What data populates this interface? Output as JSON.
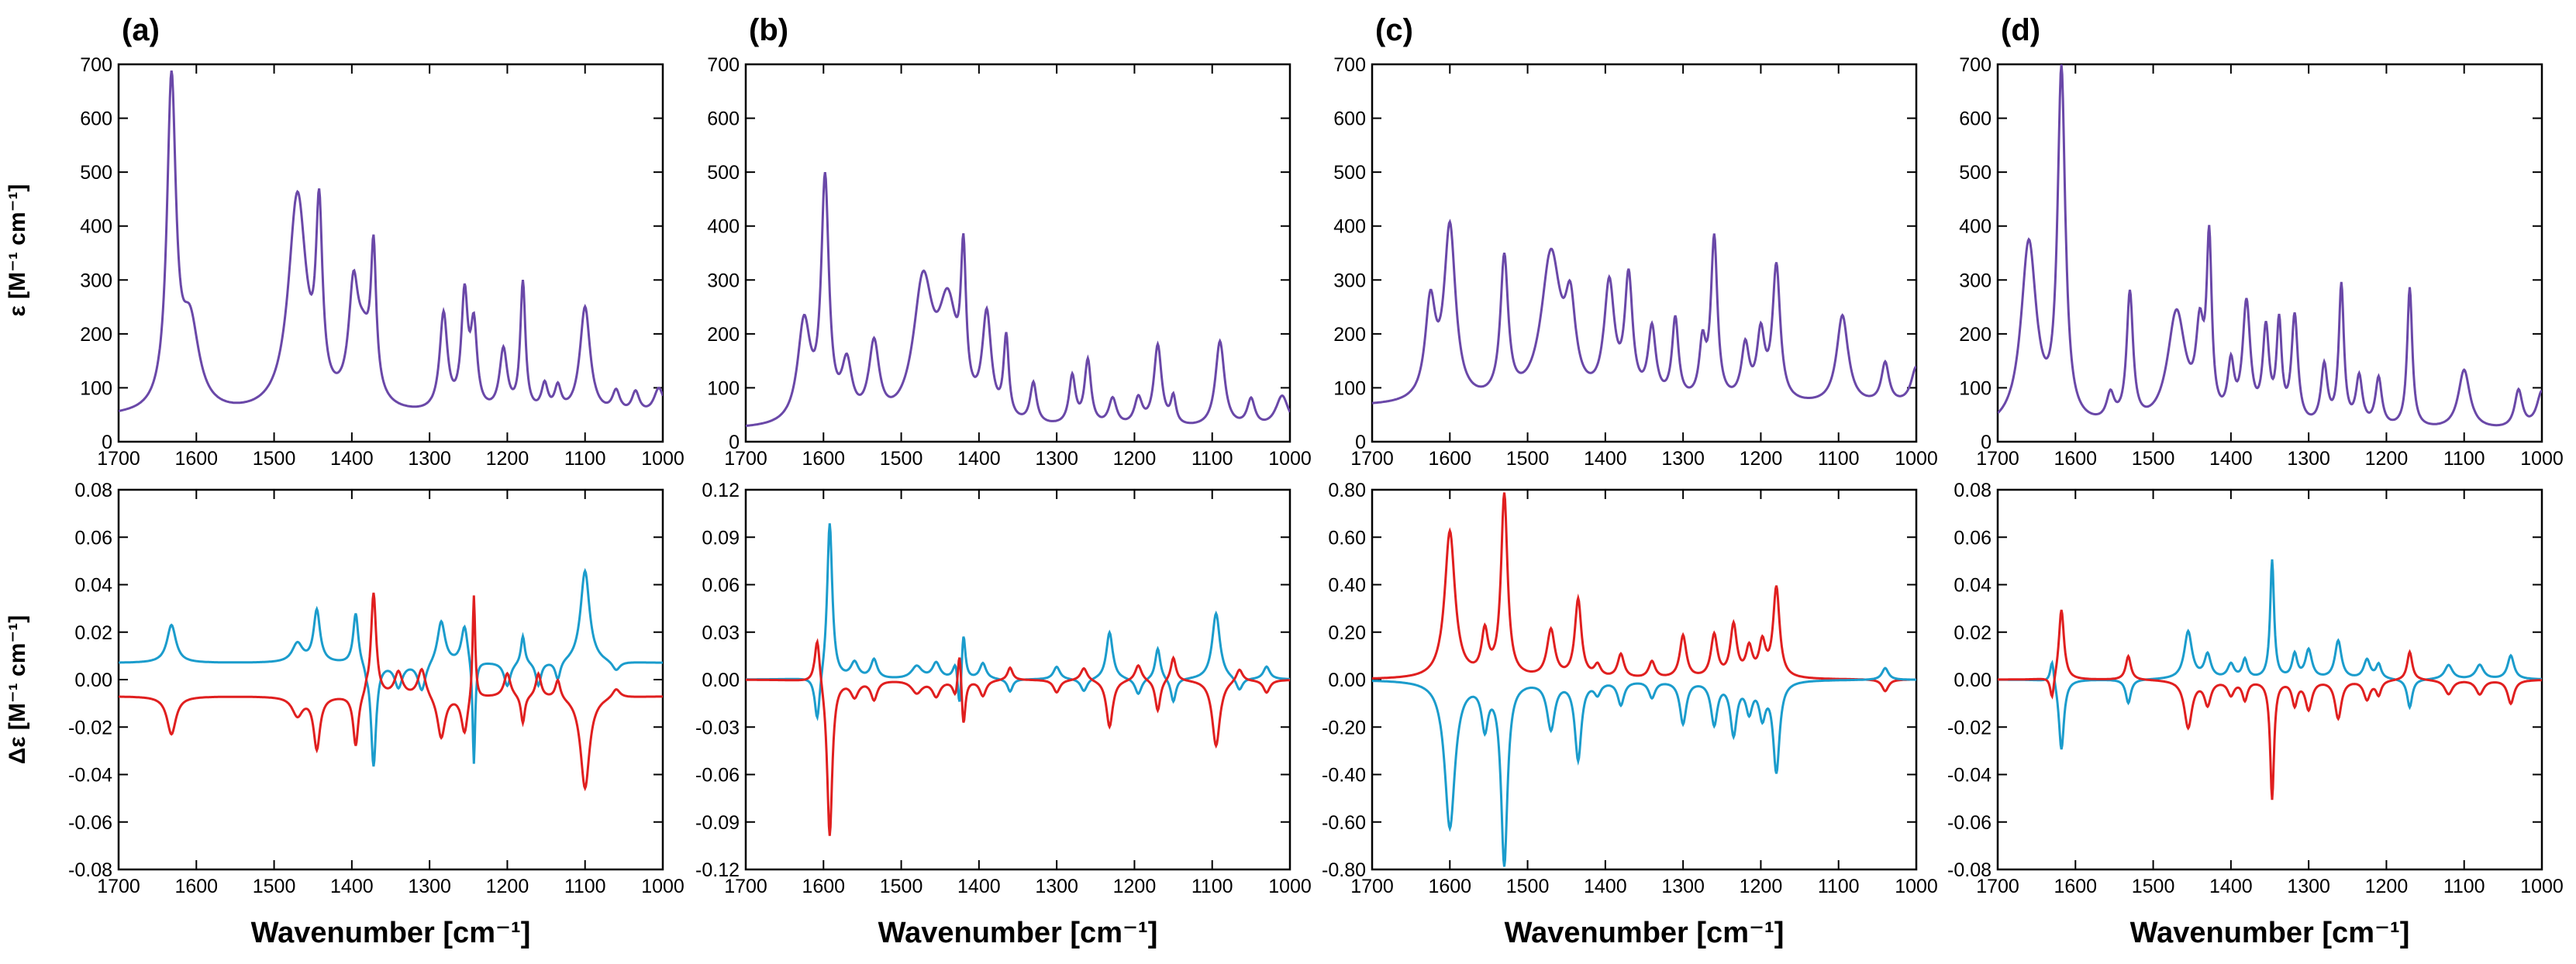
{
  "figure": {
    "ylabel_top": "ε [M⁻¹ cm⁻¹]",
    "ylabel_bottom": "Δε [M⁻¹ cm⁻¹]",
    "colors": {
      "absorption": "#6a48a8",
      "vcd_positive": "#e01f1f",
      "vcd_negative": "#1b9ccc"
    }
  },
  "chart_data": [
    {
      "panel": "(a)",
      "type": "line",
      "title": "(a)",
      "xlabel": "Wavenumber [cm⁻¹]",
      "xlim": [
        1700,
        1000
      ],
      "xticks": [
        "1700",
        "1600",
        "1500",
        "1400",
        "1300",
        "1200",
        "1100",
        "1000"
      ],
      "ir": {
        "ylabel": "ε [M⁻¹ cm⁻¹]",
        "ylim": [
          0,
          700
        ],
        "yticks": [
          "0",
          "100",
          "200",
          "300",
          "400",
          "500",
          "600",
          "700"
        ],
        "baseline": 45,
        "peaks": [
          [
            1632,
            600,
            7
          ],
          [
            1608,
            155,
            14
          ],
          [
            1470,
            400,
            14
          ],
          [
            1442,
            330,
            5
          ],
          [
            1398,
            180,
            7
          ],
          [
            1372,
            250,
            4
          ],
          [
            1385,
            120,
            14
          ],
          [
            1282,
            180,
            6
          ],
          [
            1255,
            210,
            5
          ],
          [
            1243,
            150,
            5
          ],
          [
            1205,
            115,
            6
          ],
          [
            1180,
            240,
            4
          ],
          [
            1100,
            200,
            8
          ],
          [
            1152,
            50,
            5
          ],
          [
            1135,
            45,
            5
          ],
          [
            1060,
            40,
            6
          ],
          [
            1035,
            40,
            6
          ],
          [
            1005,
            50,
            8
          ]
        ]
      },
      "vcd": {
        "ylabel": "Δε [M⁻¹ cm⁻¹]",
        "ylim": [
          -0.08,
          0.08
        ],
        "yticks": [
          "-0.08",
          "-0.06",
          "-0.04",
          "-0.02",
          "0.00",
          "0.02",
          "0.04",
          "0.06",
          "0.08"
        ],
        "offset": 0.007,
        "peaks": [
          [
            1632,
            0.016,
            7
          ],
          [
            1470,
            0.008,
            8
          ],
          [
            1445,
            0.022,
            5
          ],
          [
            1395,
            0.022,
            4
          ],
          [
            1381,
            -0.002,
            2
          ],
          [
            1372,
            -0.044,
            4
          ],
          [
            1340,
            -0.01,
            6
          ],
          [
            1310,
            -0.012,
            6
          ],
          [
            1285,
            0.018,
            6
          ],
          [
            1255,
            0.016,
            5
          ],
          [
            1243,
            -0.045,
            2
          ],
          [
            1200,
            -0.01,
            5
          ],
          [
            1180,
            0.012,
            3
          ],
          [
            1160,
            -0.01,
            4
          ],
          [
            1135,
            -0.008,
            4
          ],
          [
            1100,
            0.039,
            7
          ],
          [
            1060,
            -0.004,
            6
          ]
        ]
      }
    },
    {
      "panel": "(b)",
      "type": "line",
      "title": "(b)",
      "xlabel": "Wavenumber [cm⁻¹]",
      "xlim": [
        1700,
        1000
      ],
      "xticks": [
        "1700",
        "1600",
        "1500",
        "1400",
        "1300",
        "1200",
        "1100",
        "1000"
      ],
      "ir": {
        "ylabel": "ε [M⁻¹ cm⁻¹]",
        "ylim": [
          0,
          700
        ],
        "yticks": [
          "0",
          "100",
          "200",
          "300",
          "400",
          "500",
          "600",
          "700"
        ],
        "baseline": 22,
        "peaks": [
          [
            1625,
            185,
            10
          ],
          [
            1598,
            440,
            6
          ],
          [
            1570,
            100,
            8
          ],
          [
            1535,
            140,
            8
          ],
          [
            1472,
            250,
            15
          ],
          [
            1440,
            200,
            15
          ],
          [
            1420,
            260,
            4
          ],
          [
            1390,
            190,
            7
          ],
          [
            1365,
            150,
            4
          ],
          [
            1330,
            75,
            5
          ],
          [
            1280,
            90,
            5
          ],
          [
            1260,
            120,
            5
          ],
          [
            1228,
            50,
            6
          ],
          [
            1195,
            50,
            6
          ],
          [
            1170,
            150,
            6
          ],
          [
            1150,
            50,
            4
          ],
          [
            1090,
            160,
            7
          ],
          [
            1050,
            50,
            6
          ],
          [
            1010,
            60,
            10
          ]
        ]
      },
      "vcd": {
        "ylabel": "Δε [M⁻¹ cm⁻¹]",
        "ylim": [
          -0.12,
          0.12
        ],
        "yticks": [
          "-0.12",
          "-0.09",
          "-0.06",
          "-0.03",
          "0.00",
          "0.03",
          "0.06",
          "0.09",
          "0.12"
        ],
        "offset": 0.0,
        "peaks": [
          [
            1608,
            -0.03,
            4
          ],
          [
            1592,
            0.1,
            4
          ],
          [
            1560,
            0.01,
            6
          ],
          [
            1535,
            0.012,
            5
          ],
          [
            1480,
            0.008,
            8
          ],
          [
            1455,
            0.01,
            6
          ],
          [
            1430,
            0.012,
            4
          ],
          [
            1425,
            -0.028,
            3
          ],
          [
            1420,
            0.032,
            3
          ],
          [
            1395,
            0.01,
            5
          ],
          [
            1360,
            -0.008,
            4
          ],
          [
            1300,
            0.008,
            5
          ],
          [
            1265,
            -0.008,
            5
          ],
          [
            1232,
            0.03,
            5
          ],
          [
            1195,
            -0.01,
            5
          ],
          [
            1170,
            0.02,
            4
          ],
          [
            1150,
            -0.015,
            4
          ],
          [
            1095,
            0.042,
            6
          ],
          [
            1065,
            -0.008,
            5
          ],
          [
            1030,
            0.008,
            5
          ]
        ]
      }
    },
    {
      "panel": "(c)",
      "type": "line",
      "title": "(c)",
      "xlabel": "Wavenumber [cm⁻¹]",
      "xlim": [
        1700,
        1000
      ],
      "xticks": [
        "1700",
        "1600",
        "1500",
        "1400",
        "1300",
        "1200",
        "1100",
        "1000"
      ],
      "ir": {
        "ylabel": "ε [M⁻¹ cm⁻¹]",
        "ylim": [
          0,
          700
        ],
        "yticks": [
          "0",
          "100",
          "200",
          "300",
          "400",
          "500",
          "600",
          "700"
        ],
        "baseline": 65,
        "peaks": [
          [
            1625,
            175,
            8
          ],
          [
            1600,
            320,
            9
          ],
          [
            1530,
            260,
            6
          ],
          [
            1470,
            270,
            15
          ],
          [
            1445,
            150,
            8
          ],
          [
            1395,
            210,
            8
          ],
          [
            1370,
            220,
            6
          ],
          [
            1340,
            130,
            6
          ],
          [
            1310,
            150,
            5
          ],
          [
            1260,
            300,
            5
          ],
          [
            1275,
            100,
            5
          ],
          [
            1220,
            100,
            6
          ],
          [
            1200,
            120,
            6
          ],
          [
            1180,
            250,
            6
          ],
          [
            1095,
            165,
            9
          ],
          [
            1040,
            75,
            6
          ],
          [
            1000,
            70,
            8
          ]
        ]
      },
      "vcd": {
        "ylabel": "Δε [M⁻¹ cm⁻¹]",
        "ylim": [
          -0.8,
          0.8
        ],
        "yticks": [
          "-0.80",
          "-0.60",
          "-0.40",
          "-0.20",
          "0.00",
          "0.20",
          "0.40",
          "0.60",
          "0.80"
        ],
        "offset": 0.0,
        "peaks": [
          [
            1600,
            0.62,
            8
          ],
          [
            1555,
            0.18,
            5
          ],
          [
            1530,
            0.77,
            5
          ],
          [
            1470,
            0.2,
            6
          ],
          [
            1435,
            0.33,
            5
          ],
          [
            1410,
            0.05,
            5
          ],
          [
            1380,
            0.1,
            5
          ],
          [
            1340,
            0.07,
            5
          ],
          [
            1300,
            0.18,
            5
          ],
          [
            1260,
            0.18,
            5
          ],
          [
            1235,
            0.22,
            5
          ],
          [
            1215,
            0.12,
            5
          ],
          [
            1198,
            0.14,
            5
          ],
          [
            1180,
            0.38,
            5
          ],
          [
            1040,
            -0.05,
            5
          ]
        ]
      }
    },
    {
      "panel": "(d)",
      "type": "line",
      "title": "(d)",
      "xlabel": "Wavenumber [cm⁻¹]",
      "xlim": [
        1700,
        1000
      ],
      "xticks": [
        "1700",
        "1600",
        "1500",
        "1400",
        "1300",
        "1200",
        "1100",
        "1000"
      ],
      "ir": {
        "ylabel": "ε [M⁻¹ cm⁻¹]",
        "ylim": [
          0,
          700
        ],
        "yticks": [
          "0",
          "100",
          "200",
          "300",
          "400",
          "500",
          "600",
          "700"
        ],
        "baseline": 20,
        "peaks": [
          [
            1660,
            340,
            12
          ],
          [
            1618,
            650,
            6
          ],
          [
            1555,
            50,
            6
          ],
          [
            1530,
            240,
            5
          ],
          [
            1470,
            210,
            14
          ],
          [
            1440,
            150,
            6
          ],
          [
            1428,
            320,
            4
          ],
          [
            1400,
            100,
            5
          ],
          [
            1380,
            220,
            6
          ],
          [
            1355,
            170,
            5
          ],
          [
            1338,
            180,
            4
          ],
          [
            1318,
            200,
            5
          ],
          [
            1280,
            110,
            5
          ],
          [
            1258,
            260,
            4
          ],
          [
            1235,
            90,
            5
          ],
          [
            1210,
            90,
            5
          ],
          [
            1170,
            260,
            4
          ],
          [
            1100,
            110,
            9
          ],
          [
            1030,
            70,
            6
          ],
          [
            1000,
            70,
            8
          ]
        ]
      },
      "vcd": {
        "ylabel": "Δε [M⁻¹ cm⁻¹]",
        "ylim": [
          -0.08,
          0.08
        ],
        "yticks": [
          "-0.08",
          "-0.06",
          "-0.04",
          "-0.02",
          "0.00",
          "0.02",
          "0.04",
          "0.06",
          "0.08"
        ],
        "offset": 0.0,
        "peaks": [
          [
            1630,
            0.01,
            3
          ],
          [
            1618,
            -0.03,
            4
          ],
          [
            1532,
            -0.01,
            4
          ],
          [
            1455,
            0.02,
            6
          ],
          [
            1430,
            0.01,
            5
          ],
          [
            1400,
            0.006,
            5
          ],
          [
            1382,
            0.008,
            4
          ],
          [
            1347,
            0.05,
            3
          ],
          [
            1318,
            0.01,
            4
          ],
          [
            1300,
            0.012,
            5
          ],
          [
            1262,
            0.016,
            5
          ],
          [
            1225,
            0.008,
            5
          ],
          [
            1210,
            0.006,
            4
          ],
          [
            1170,
            -0.012,
            4
          ],
          [
            1120,
            0.006,
            6
          ],
          [
            1080,
            0.006,
            6
          ],
          [
            1040,
            0.01,
            5
          ]
        ]
      }
    }
  ]
}
